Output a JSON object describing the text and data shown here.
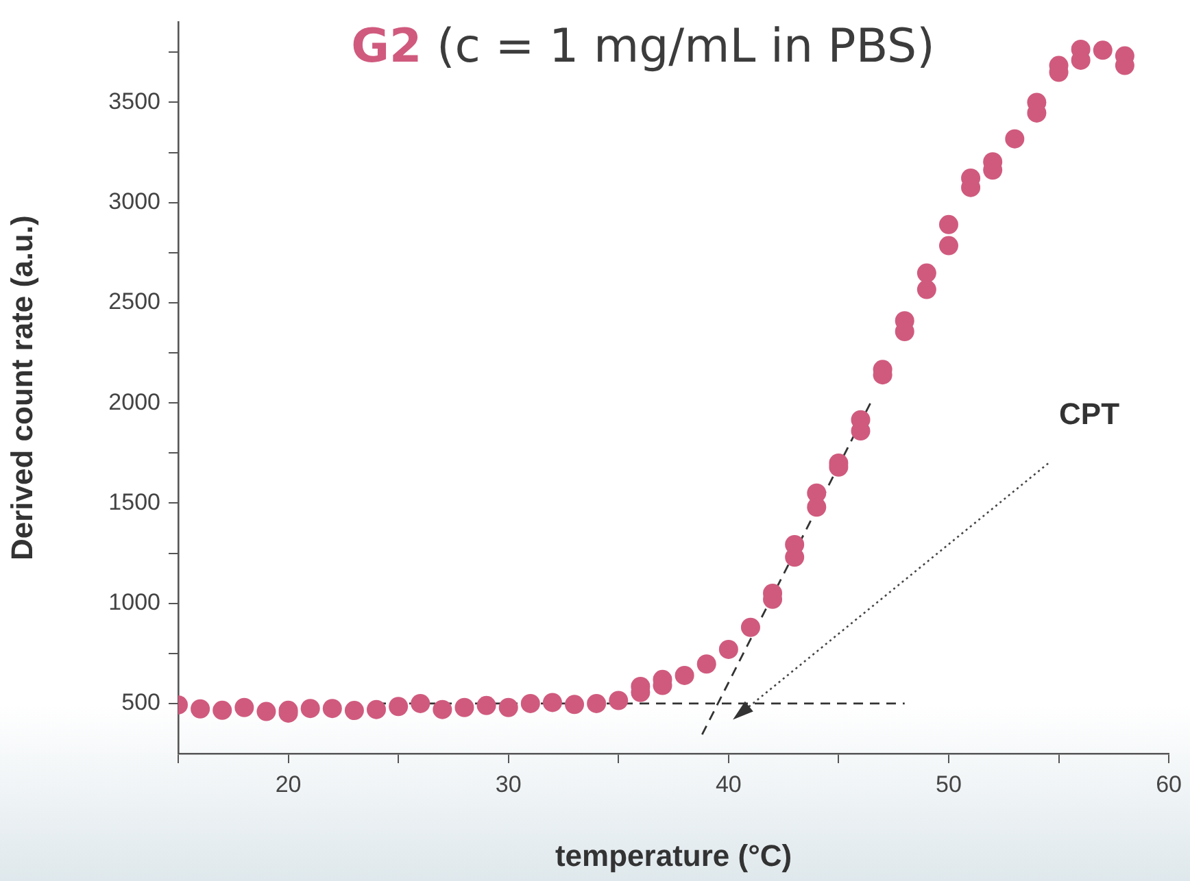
{
  "chart_data": {
    "type": "scatter",
    "title": "G2 (c = 1 mg/mL in PBS)",
    "xlabel": "temperature (°C)",
    "ylabel": "Derived count rate (a.u.)",
    "xlim": [
      15,
      60
    ],
    "ylim": [
      250,
      3900
    ],
    "xticks": [
      {
        "value": 15,
        "label": null
      },
      20,
      {
        "value": 25,
        "label": null
      },
      30,
      {
        "value": 35,
        "label": null
      },
      40,
      {
        "value": 45,
        "label": null
      },
      50,
      {
        "value": 55,
        "label": null
      },
      60
    ],
    "yticks": [
      500,
      {
        "value": 750,
        "label": null
      },
      1000,
      {
        "value": 1250,
        "label": null
      },
      1500,
      {
        "value": 1750,
        "label": null
      },
      2000,
      {
        "value": 2250,
        "label": null
      },
      2500,
      {
        "value": 2750,
        "label": null
      },
      3000,
      {
        "value": 3250,
        "label": null
      },
      3500,
      {
        "value": 3750,
        "label": null
      }
    ],
    "grid": false,
    "legend": false,
    "marker": "circle",
    "series": [
      {
        "type": "scatter",
        "color": "#d05a7e",
        "x": [
          15,
          16,
          17,
          18,
          19,
          20,
          20,
          21,
          22,
          23,
          24,
          25,
          26,
          27,
          28,
          29,
          30,
          31,
          32,
          33,
          34,
          35,
          36,
          36,
          37,
          37,
          38,
          39,
          40,
          41,
          42,
          42,
          43,
          43,
          44,
          44,
          45,
          45,
          46,
          46,
          47,
          47,
          48,
          48,
          49,
          49,
          50,
          50,
          51,
          51,
          52,
          52,
          53,
          54,
          54,
          55,
          55,
          56,
          56,
          57,
          58,
          58
        ],
        "values": [
          493,
          473,
          466,
          480,
          460,
          466,
          452,
          475,
          475,
          465,
          470,
          485,
          500,
          470,
          480,
          490,
          480,
          500,
          505,
          495,
          500,
          515,
          585,
          555,
          620,
          590,
          640,
          697,
          770,
          880,
          1050,
          1020,
          1293,
          1230,
          1550,
          1480,
          1700,
          1680,
          1916,
          1860,
          2167,
          2140,
          2410,
          2356,
          2648,
          2566,
          2890,
          2785,
          3122,
          3075,
          3203,
          3162,
          3318,
          3500,
          3447,
          3684,
          3650,
          3765,
          3710,
          3760,
          3732,
          3684
        ]
      },
      {
        "type": "line",
        "color": "#333333",
        "line_style": "dashed",
        "marker": "none",
        "x": [
          24,
          48
        ],
        "values": [
          500,
          500
        ]
      },
      {
        "type": "line",
        "color": "#333333",
        "line_style": "dashed",
        "marker": "none",
        "x": [
          38.8,
          46.5
        ],
        "values": [
          345,
          2011
        ]
      }
    ],
    "annotations": [
      "CPT"
    ]
  }
}
